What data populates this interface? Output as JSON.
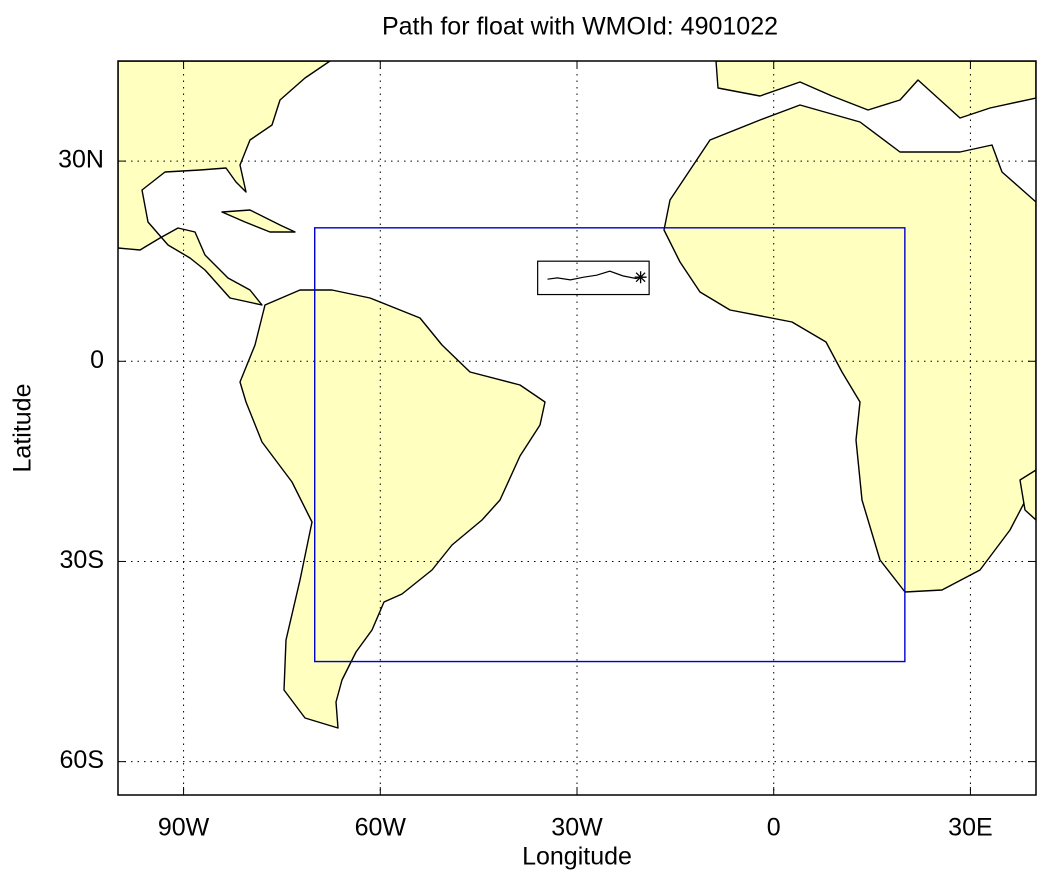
{
  "chart_data": {
    "type": "map",
    "title": "Path for float with WMOId: 4901022",
    "x_label": "Longitude",
    "y_label": "Latitude",
    "xlim": [
      -100,
      40
    ],
    "ylim": [
      -65,
      45
    ],
    "xticks": [
      {
        "value": -90,
        "label": "90W"
      },
      {
        "value": -60,
        "label": "60W"
      },
      {
        "value": -30,
        "label": "30W"
      },
      0,
      {
        "value": 30,
        "label": "30E"
      }
    ],
    "yticks": [
      {
        "value": 30,
        "label": "30N"
      },
      0,
      {
        "value": -30,
        "label": "30S"
      },
      {
        "value": -60,
        "label": "60S"
      }
    ],
    "grid": true,
    "land_color": "#ffffc0",
    "region": {
      "lon": [
        -70,
        20
      ],
      "lat": [
        -45,
        20
      ],
      "color": "#0000cc"
    },
    "inset_box": {
      "lon": [
        -36,
        -19
      ],
      "lat": [
        10,
        15
      ],
      "color": "#000000"
    },
    "path": {
      "color": "#000000",
      "x": [
        -34.5,
        -33,
        -31,
        -29,
        -27,
        -25,
        -23,
        -21,
        -20.3
      ],
      "y": [
        12.3,
        12.5,
        12.2,
        12.6,
        12.9,
        13.5,
        12.8,
        12.4,
        12.6
      ]
    }
  }
}
